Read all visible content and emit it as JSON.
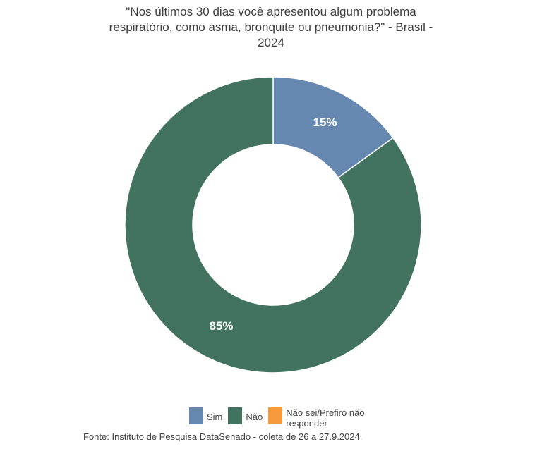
{
  "chart_data": {
    "type": "pie",
    "variant": "donut",
    "title": "\"Nos últimos 30 dias você apresentou algum problema respiratório, como asma, bronquite ou pneumonia?\" - Brasil - 2024",
    "categories": [
      "Sim",
      "Não",
      "Não sei/Prefiro não responder"
    ],
    "values": [
      15,
      85,
      0
    ],
    "labels": [
      "15%",
      "85%",
      ""
    ],
    "colors": [
      "#6688b0",
      "#427360",
      "#f59a3c"
    ],
    "legend_position": "bottom"
  },
  "footer": {
    "source": "Fonte: Instituto de Pesquisa DataSenado - coleta de 26 a 27.9.2024."
  }
}
